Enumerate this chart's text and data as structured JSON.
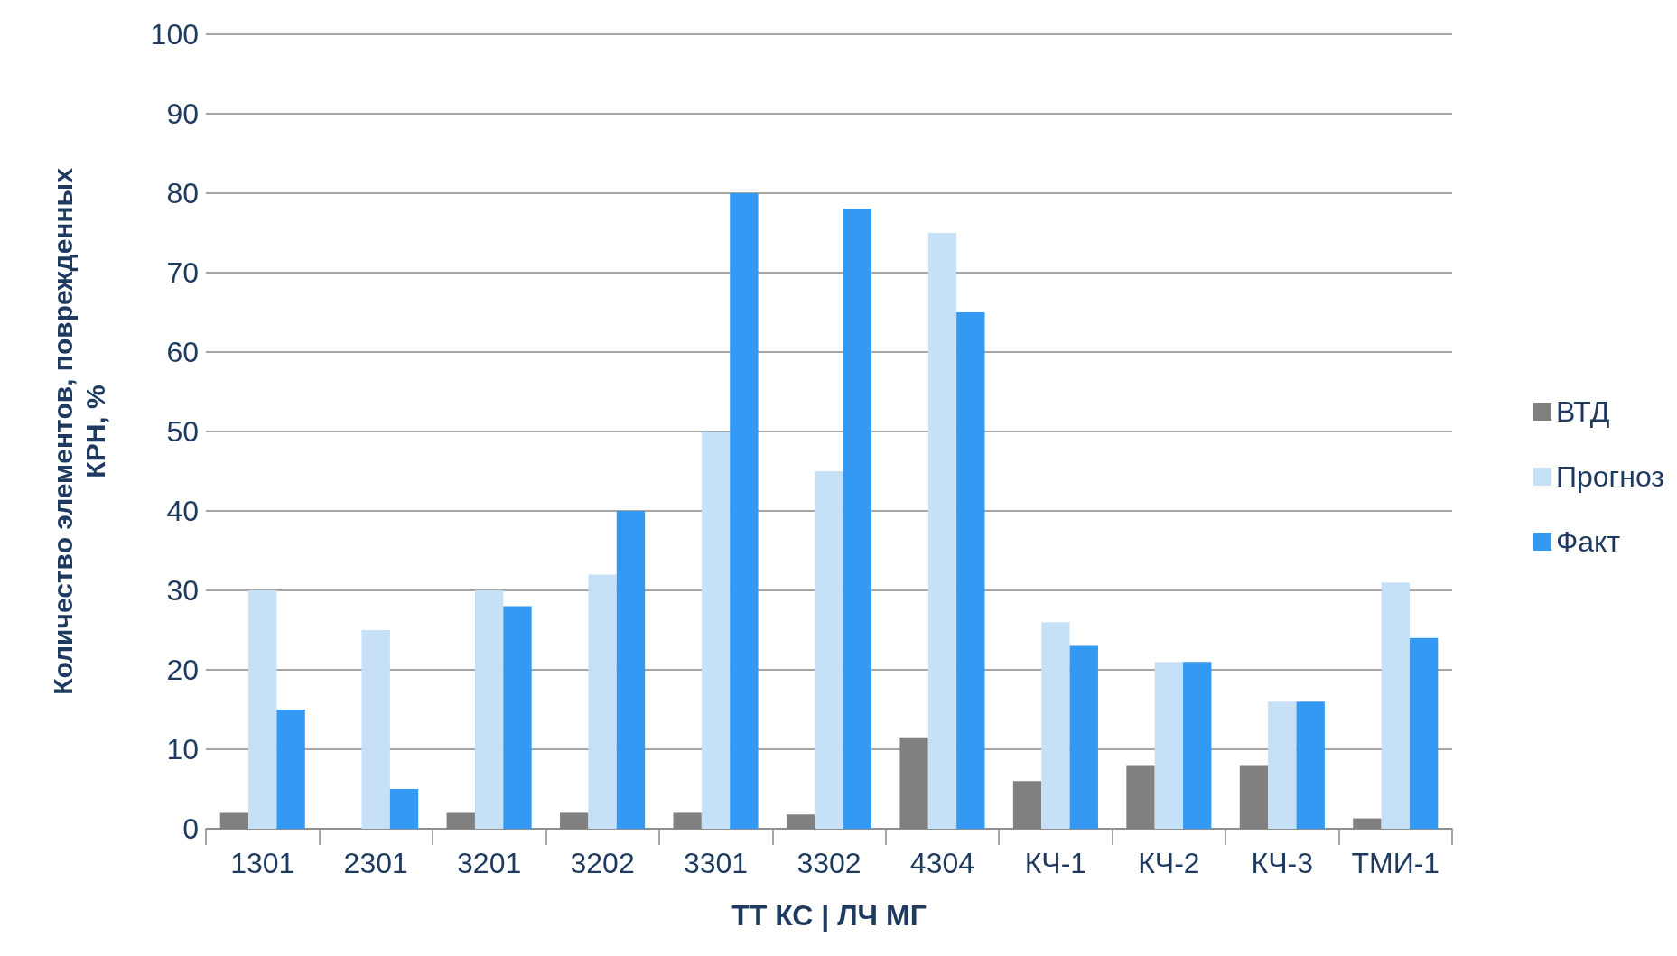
{
  "chart_data": {
    "type": "bar",
    "xlabel": "ТТ КС | ЛЧ МГ",
    "ylabel": "Количество элементов, поврежденных\nКРН, %",
    "categories": [
      "1301",
      "2301",
      "3201",
      "3202",
      "3301",
      "3302",
      "4304",
      "КЧ-1",
      "КЧ-2",
      "КЧ-3",
      "ТМИ-1"
    ],
    "series": [
      {
        "name": "ВТД",
        "color": "#808080",
        "values": [
          2,
          0,
          2,
          2,
          2,
          1.8,
          11.5,
          6,
          8,
          8,
          1.3
        ]
      },
      {
        "name": "Прогноз",
        "color": "#c6e0f7",
        "values": [
          30,
          25,
          30,
          32,
          50,
          45,
          75,
          26,
          21,
          16,
          31
        ]
      },
      {
        "name": "Факт",
        "color": "#3399f3",
        "values": [
          15,
          5,
          28,
          40,
          80,
          78,
          65,
          23,
          21,
          16,
          24
        ]
      }
    ],
    "ylim": [
      0,
      100
    ],
    "yticks": [
      0,
      10,
      20,
      30,
      40,
      50,
      60,
      70,
      80,
      90,
      100
    ],
    "grid": "y",
    "legend": "right"
  }
}
